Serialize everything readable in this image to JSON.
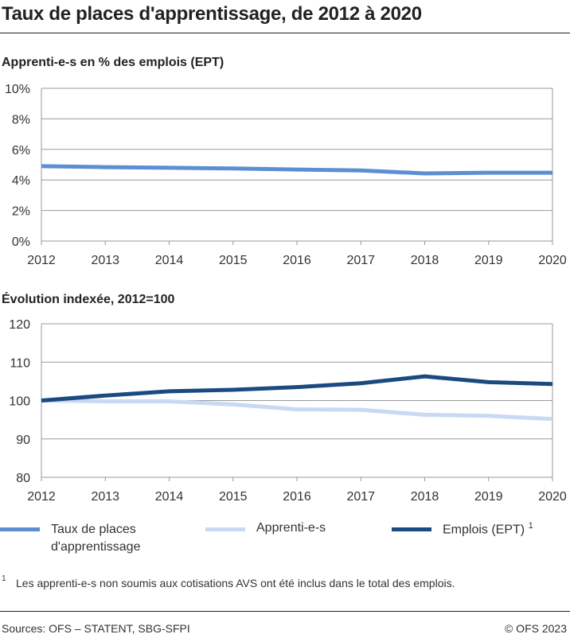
{
  "title": "Taux de places d'apprentissage, de 2012 à 2020",
  "chart_data": [
    {
      "type": "line",
      "title": "Apprenti-e-s en % des emplois (EPT)",
      "x": [
        2012,
        2013,
        2014,
        2015,
        2016,
        2017,
        2018,
        2019,
        2020
      ],
      "ylim": [
        0,
        10
      ],
      "yticks": [
        "0%",
        "2%",
        "4%",
        "6%",
        "8%",
        "10%"
      ],
      "ytick_values": [
        0,
        2,
        4,
        6,
        8,
        10
      ],
      "grid": true,
      "series": [
        {
          "name": "Taux de places d'apprentissage",
          "color": "#5b8fd4",
          "values": [
            4.9,
            4.84,
            4.8,
            4.75,
            4.68,
            4.62,
            4.43,
            4.47,
            4.47
          ]
        }
      ]
    },
    {
      "type": "line",
      "title": "Évolution indexée, 2012=100",
      "x": [
        2012,
        2013,
        2014,
        2015,
        2016,
        2017,
        2018,
        2019,
        2020
      ],
      "ylim": [
        80,
        120
      ],
      "yticks": [
        "80",
        "90",
        "100",
        "110",
        "120"
      ],
      "ytick_values": [
        80,
        90,
        100,
        110,
        120
      ],
      "grid": true,
      "series": [
        {
          "name": "Apprenti-e-s",
          "color": "#c9d9f3",
          "values": [
            100,
            99.8,
            99.8,
            99,
            97.7,
            97.6,
            96.3,
            96,
            95.2
          ]
        },
        {
          "name": "Emplois (EPT)",
          "color": "#1a4a80",
          "values": [
            100,
            101.3,
            102.4,
            102.8,
            103.5,
            104.5,
            106.3,
            104.8,
            104.3
          ]
        }
      ]
    }
  ],
  "legend": [
    {
      "label": "Taux de places d'apprentissage",
      "color": "#5b8fd4"
    },
    {
      "label": "Apprenti-e-s",
      "color": "#c9d9f3"
    },
    {
      "label": "Emplois (EPT)",
      "color": "#1a4a80",
      "sup": "1"
    }
  ],
  "footnote": {
    "mark": "1",
    "text": "Les apprenti-e-s non soumis aux cotisations AVS ont été inclus dans le total des emplois."
  },
  "source": "Sources: OFS – STATENT, SBG-SFPI",
  "copyright": "© OFS 2023"
}
